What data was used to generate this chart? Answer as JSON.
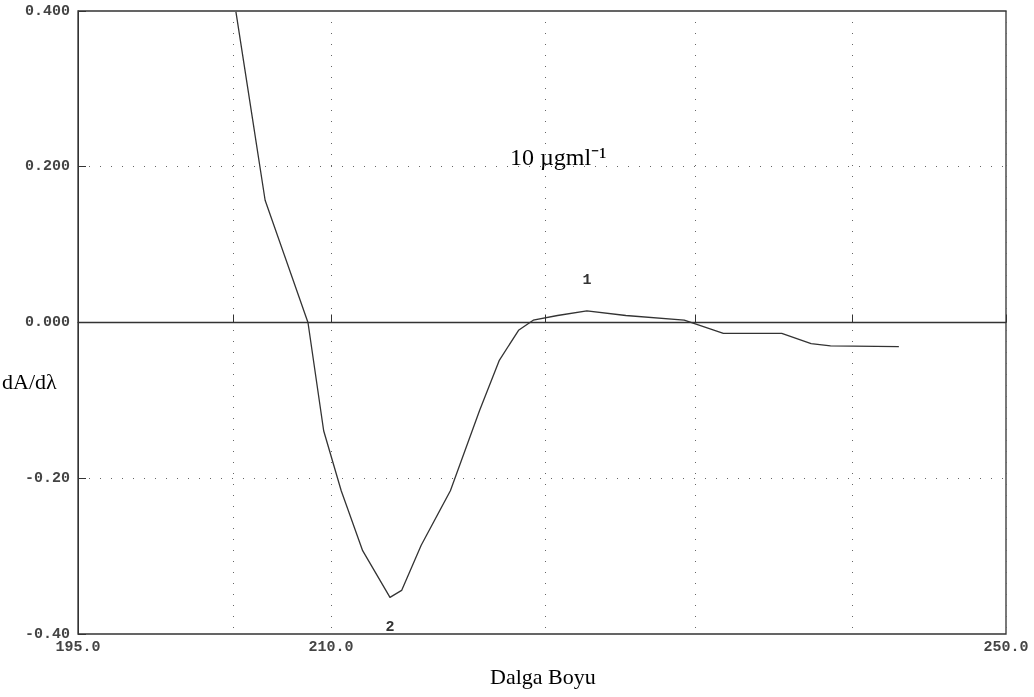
{
  "chart_data": {
    "type": "line",
    "xlabel": "Dalga Boyu",
    "ylabel": "dA/dλ",
    "annotations": [
      "10 µgml⁻¹",
      {
        "text": "1",
        "x": 225.16,
        "y": 0.015
      },
      {
        "text": "2",
        "x": 213.49,
        "y": -0.353
      }
    ],
    "x": [
      204.36,
      206.09,
      208.63,
      209.56,
      210.6,
      211.87,
      213.49,
      214.18,
      215.34,
      217.07,
      218.8,
      219.96,
      221.11,
      221.98,
      223.42,
      225.16,
      227.47,
      230.93,
      233.25,
      236.71,
      238.45,
      239.6,
      243.65
    ],
    "series": [
      {
        "color": "#333333",
        "values": [
          0.399,
          0.157,
          0,
          -0.139,
          -0.216,
          -0.293,
          -0.353,
          -0.344,
          -0.286,
          -0.216,
          -0.113,
          -0.049,
          -0.01,
          0.003,
          0.009,
          0.015,
          0.009,
          0.003,
          -0.014,
          -0.014,
          -0.027,
          -0.03,
          -0.031
        ]
      }
    ],
    "xlim": [
      195,
      250
    ],
    "xticks": [
      {
        "value": 195,
        "label": "195.0"
      },
      {
        "value": 204.2,
        "label": null
      },
      {
        "value": 210,
        "label": "210.0"
      },
      {
        "value": 222.7,
        "label": null
      },
      {
        "value": 231.6,
        "label": null
      },
      {
        "value": 240.9,
        "label": null
      },
      {
        "value": 250,
        "label": "250.0"
      }
    ],
    "ylim": [
      -0.4,
      0.4
    ],
    "yticks": [
      {
        "value": -0.4,
        "label": "-0.40"
      },
      {
        "value": -0.2,
        "label": "-0.20"
      },
      {
        "value": 0,
        "label": "0.000"
      },
      {
        "value": 0.2,
        "label": "0.200"
      },
      {
        "value": 0.4,
        "label": "0.400"
      }
    ],
    "ref_lines": [
      {
        "axis": "y",
        "value": 0,
        "label": null,
        "color": "#333333"
      }
    ],
    "grid": true,
    "marker": "none",
    "line_style": "solid"
  }
}
